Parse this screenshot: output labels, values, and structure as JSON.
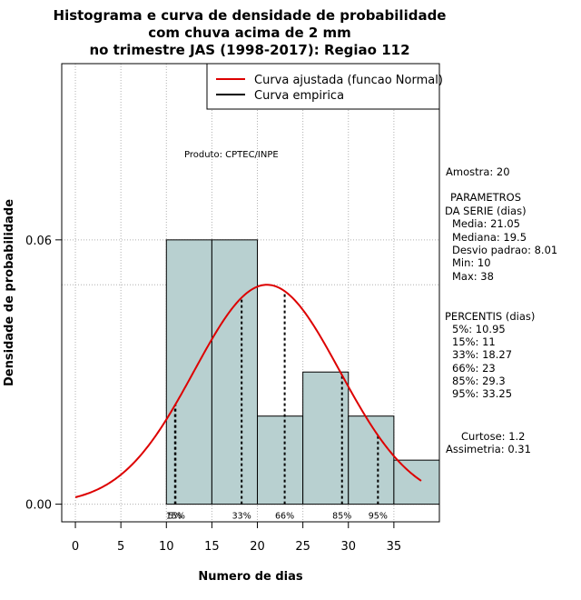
{
  "chart_data": {
    "type": "bar",
    "title_lines": [
      "Histograma e curva de densidade de probabilidade",
      "com chuva acima de 2 mm",
      "no trimestre JAS (1998-2017): Regiao 112"
    ],
    "xlabel": "Numero de dias",
    "ylabel": "Densidade de probabilidade",
    "xlim": [
      -1.5,
      40.0
    ],
    "ylim": [
      -0.004,
      0.1
    ],
    "xticks": [
      0,
      5,
      10,
      15,
      20,
      25,
      30,
      35
    ],
    "yticks": [
      0.0,
      0.06
    ],
    "ytick_labels": [
      "0.00",
      "0.06"
    ],
    "hgrid": [
      0.0,
      0.06,
      0.1
    ],
    "bins": [
      {
        "start": 10,
        "end": 15,
        "density": 0.06
      },
      {
        "start": 15,
        "end": 20,
        "density": 0.06
      },
      {
        "start": 20,
        "end": 25,
        "density": 0.02
      },
      {
        "start": 25,
        "end": 30,
        "density": 0.03
      },
      {
        "start": 30,
        "end": 35,
        "density": 0.02
      },
      {
        "start": 35,
        "end": 40,
        "density": 0.01
      }
    ],
    "bar_color": "#b8d0d0",
    "fitted_curve": {
      "name": "Curva ajustada (funcao Normal)",
      "mean": 21.05,
      "sd": 8.01,
      "x_from": 0,
      "x_to": 38,
      "color": "#dd0000"
    },
    "empirical_curve": {
      "name": "Curva empirica",
      "color": "#000000"
    },
    "legend": {
      "position": "top-right",
      "entries": [
        "Curva ajustada (funcao Normal)",
        "Curva empirica"
      ]
    },
    "percentile_lines": [
      {
        "x": 10.95,
        "label": "5%"
      },
      {
        "x": 11,
        "label": "15%"
      },
      {
        "x": 18.27,
        "label": "33%"
      },
      {
        "x": 23,
        "label": "66%"
      },
      {
        "x": 29.3,
        "label": "85%"
      },
      {
        "x": 33.25,
        "label": "95%"
      }
    ],
    "product_label": "Produto: CPTEC/INPE"
  },
  "side_panel": {
    "amostra": "Amostra: 20",
    "params_title_1": "PARAMETROS",
    "params_title_2": "DA SERIE (dias)",
    "media": "Media: 21.05",
    "mediana": "Mediana: 19.5",
    "desvio": "Desvio padrao: 8.01",
    "min": "Min: 10",
    "max": "Max: 38",
    "percentis_title": "PERCENTIS (dias)",
    "p5": "5%: 10.95",
    "p15": "15%: 11",
    "p33": "33%: 18.27",
    "p66": "66%: 23",
    "p85": "85%: 29.3",
    "p95": "95%: 33.25",
    "curtose": "Curtose: 1.2",
    "assimetria": "Assimetria: 0.31"
  }
}
